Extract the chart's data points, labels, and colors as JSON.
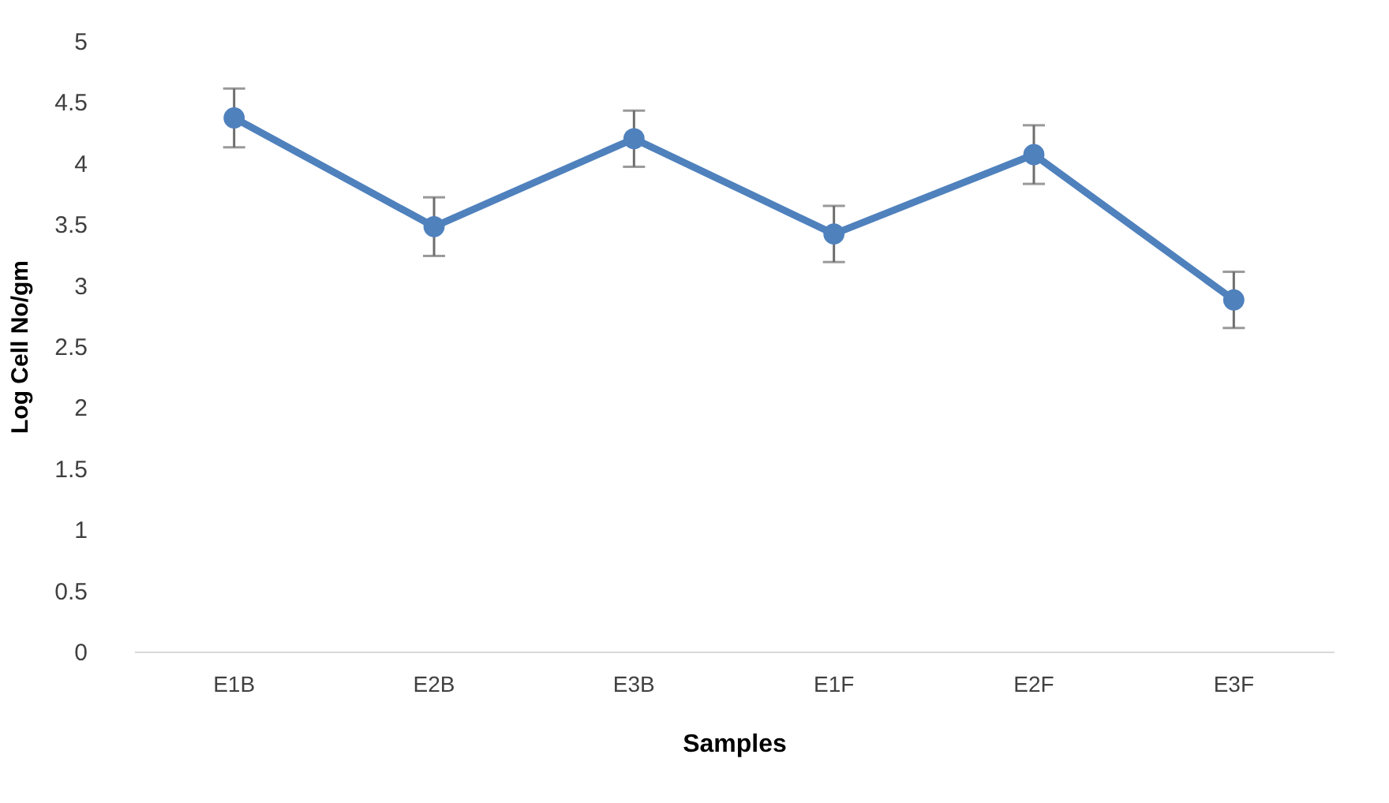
{
  "chart_data": {
    "type": "line",
    "xlabel": "Samples",
    "ylabel": "Log Cell No/gm",
    "categories": [
      "E1B",
      "E2B",
      "E3B",
      "E1F",
      "E2F",
      "E3F"
    ],
    "series": [
      {
        "color": "#4f81bd",
        "values": [
          4.37,
          3.48,
          4.2,
          3.42,
          4.07,
          2.88
        ],
        "errors": [
          0.24,
          0.24,
          0.23,
          0.23,
          0.24,
          0.23
        ]
      }
    ],
    "ylim": [
      0,
      5
    ],
    "yticks": [
      0,
      0.5,
      1,
      1.5,
      2,
      2.5,
      3,
      3.5,
      4,
      4.5,
      5
    ],
    "grid": false,
    "marker": "circle"
  }
}
